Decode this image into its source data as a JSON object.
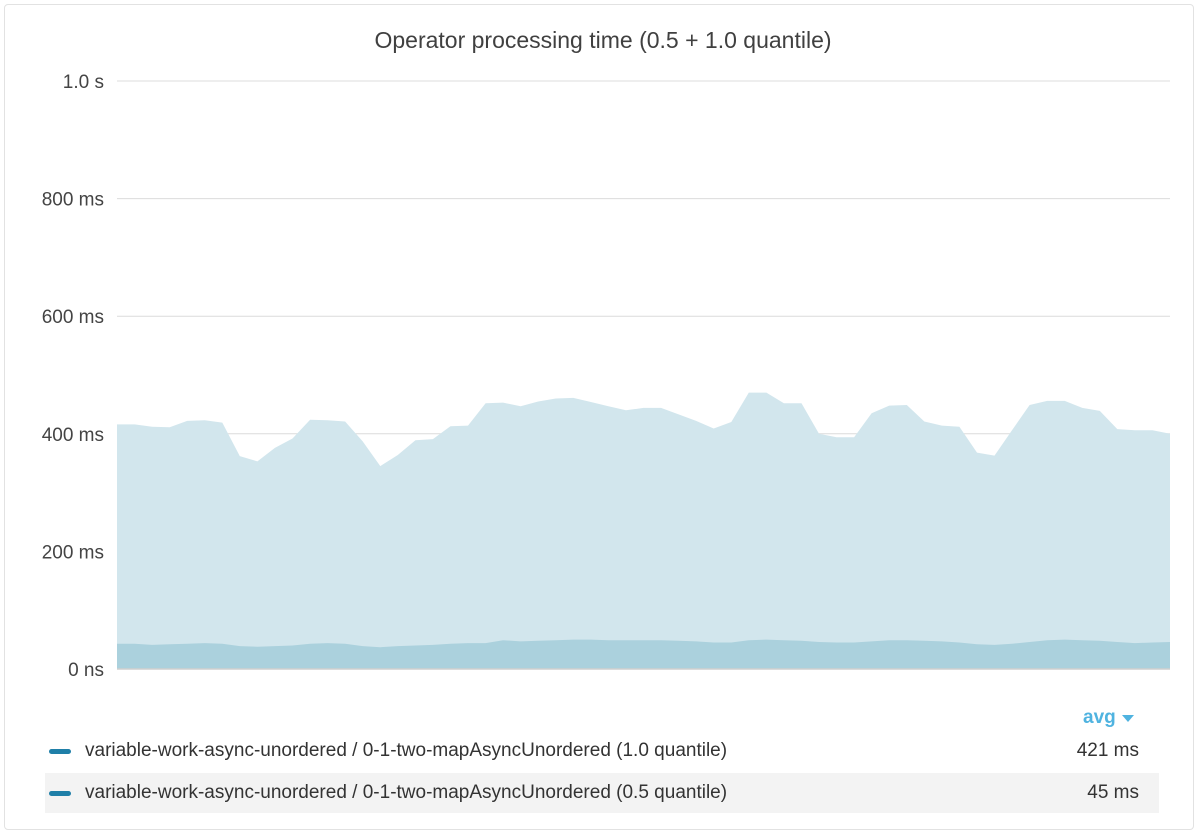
{
  "chart_data": {
    "type": "area",
    "title": "Operator processing time (0.5 + 1.0 quantile)",
    "y_ticks": [
      "0 ns",
      "200 ms",
      "400 ms",
      "600 ms",
      "800 ms",
      "1.0 s"
    ],
    "ylim": [
      0,
      1000
    ],
    "y_unit": "ms",
    "grid": true,
    "legend_placement": "bottom",
    "legend_stat_label": "avg",
    "series": [
      {
        "name": "variable-work-async-unordered / 0-1-two-mapAsyncUnordered (1.0 quantile)",
        "avg_label": "421 ms",
        "color": "#1f7fa8",
        "fill": "#d2e6ed",
        "values": [
          416,
          416,
          412,
          411,
          422,
          423,
          419,
          362,
          353,
          376,
          392,
          424,
          423,
          421,
          387,
          345,
          364,
          389,
          391,
          413,
          414,
          452,
          453,
          447,
          455,
          460,
          461,
          454,
          447,
          440,
          444,
          444,
          433,
          422,
          409,
          420,
          470,
          470,
          452,
          452,
          400,
          394,
          394,
          435,
          448,
          449,
          421,
          414,
          412,
          368,
          363,
          406,
          449,
          456,
          456,
          444,
          439,
          408,
          406,
          406,
          400
        ]
      },
      {
        "name": "variable-work-async-unordered / 0-1-two-mapAsyncUnordered (0.5 quantile)",
        "avg_label": "45 ms",
        "color": "#1f7fa8",
        "fill": "#abd1dd",
        "values": [
          43,
          43,
          41,
          42,
          43,
          44,
          43,
          39,
          38,
          39,
          40,
          43,
          44,
          43,
          39,
          37,
          39,
          40,
          41,
          43,
          44,
          44,
          49,
          47,
          48,
          49,
          50,
          50,
          49,
          49,
          49,
          49,
          48,
          47,
          45,
          45,
          49,
          50,
          49,
          48,
          46,
          45,
          45,
          47,
          49,
          49,
          48,
          47,
          45,
          42,
          41,
          43,
          46,
          49,
          50,
          49,
          48,
          46,
          44,
          45,
          46
        ]
      }
    ],
    "colors": {
      "grid": "#dcdcdc",
      "axis": "#cfcfcf",
      "accent": "#4fb3e0"
    }
  }
}
